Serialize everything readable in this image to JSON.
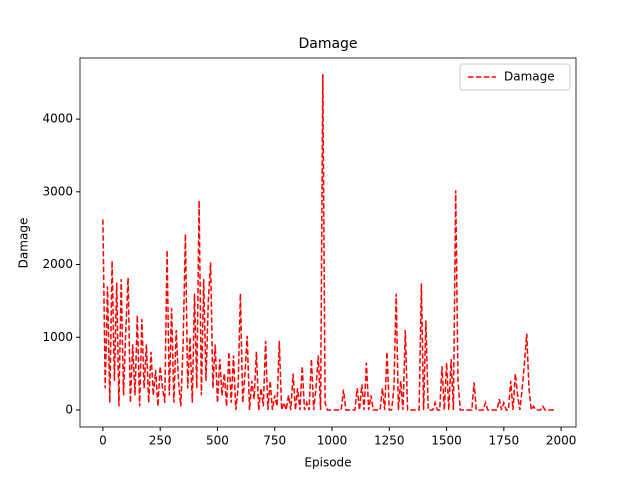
{
  "chart_data": {
    "type": "line",
    "title": "Damage",
    "xlabel": "Episode",
    "ylabel": "Damage",
    "x": [
      0,
      10,
      20,
      30,
      40,
      50,
      60,
      70,
      80,
      90,
      100,
      110,
      120,
      130,
      140,
      150,
      160,
      170,
      180,
      190,
      200,
      210,
      220,
      230,
      240,
      250,
      260,
      270,
      280,
      290,
      300,
      310,
      320,
      330,
      340,
      350,
      360,
      370,
      380,
      390,
      400,
      410,
      420,
      430,
      440,
      450,
      460,
      470,
      480,
      490,
      500,
      510,
      520,
      530,
      540,
      550,
      560,
      570,
      580,
      590,
      600,
      610,
      620,
      630,
      640,
      650,
      660,
      670,
      680,
      690,
      700,
      710,
      720,
      730,
      740,
      750,
      760,
      770,
      780,
      790,
      800,
      810,
      820,
      830,
      840,
      850,
      860,
      870,
      880,
      890,
      900,
      910,
      920,
      930,
      940,
      950,
      960,
      970,
      980,
      990,
      1000,
      1010,
      1020,
      1030,
      1040,
      1050,
      1060,
      1070,
      1080,
      1090,
      1100,
      1110,
      1120,
      1130,
      1140,
      1150,
      1160,
      1170,
      1180,
      1190,
      1200,
      1210,
      1220,
      1230,
      1240,
      1250,
      1260,
      1270,
      1280,
      1290,
      1300,
      1310,
      1320,
      1330,
      1340,
      1350,
      1360,
      1370,
      1380,
      1390,
      1400,
      1410,
      1420,
      1430,
      1440,
      1450,
      1460,
      1470,
      1480,
      1490,
      1500,
      1510,
      1520,
      1530,
      1540,
      1550,
      1560,
      1570,
      1580,
      1590,
      1600,
      1610,
      1620,
      1630,
      1640,
      1650,
      1660,
      1670,
      1680,
      1690,
      1700,
      1710,
      1720,
      1730,
      1740,
      1750,
      1760,
      1770,
      1780,
      1790,
      1800,
      1810,
      1820,
      1830,
      1840,
      1850,
      1860,
      1870,
      1880,
      1890,
      1900,
      1910,
      1920,
      1930,
      1940,
      1950,
      1960,
      1970
    ],
    "series": [
      {
        "name": "Damage",
        "color": "#ff0000",
        "values": [
          2620,
          300,
          1700,
          100,
          2050,
          400,
          1750,
          50,
          1800,
          200,
          1100,
          1820,
          100,
          900,
          200,
          1300,
          50,
          1250,
          300,
          900,
          100,
          800,
          200,
          550,
          50,
          600,
          300,
          100,
          2200,
          200,
          1400,
          100,
          1100,
          400,
          50,
          900,
          2420,
          300,
          1000,
          100,
          1600,
          300,
          2880,
          200,
          1800,
          400,
          1500,
          2030,
          300,
          900,
          100,
          700,
          200,
          500,
          50,
          800,
          100,
          750,
          0,
          300,
          1600,
          100,
          500,
          1020,
          0,
          400,
          150,
          800,
          0,
          300,
          50,
          950,
          0,
          400,
          0,
          200,
          50,
          950,
          0,
          100,
          0,
          200,
          0,
          500,
          0,
          300,
          0,
          600,
          0,
          100,
          0,
          700,
          0,
          300,
          750,
          0,
          4620,
          100,
          0,
          0,
          0,
          0,
          0,
          0,
          0,
          280,
          0,
          0,
          0,
          0,
          0,
          300,
          0,
          350,
          0,
          650,
          0,
          200,
          0,
          0,
          0,
          0,
          300,
          0,
          800,
          0,
          0,
          300,
          1600,
          0,
          400,
          0,
          1100,
          0,
          0,
          0,
          0,
          0,
          0,
          1740,
          0,
          1230,
          0,
          0,
          0,
          100,
          0,
          0,
          600,
          0,
          650,
          0,
          700,
          0,
          3020,
          400,
          0,
          0,
          0,
          0,
          0,
          0,
          380,
          0,
          0,
          0,
          0,
          100,
          0,
          0,
          0,
          0,
          0,
          150,
          0,
          100,
          0,
          0,
          400,
          0,
          500,
          200,
          0,
          300,
          650,
          1050,
          300,
          0,
          50,
          0,
          0,
          0,
          50,
          0,
          0,
          0,
          0,
          0
        ]
      }
    ],
    "xlim": [
      -100,
      2065
    ],
    "ylim": [
      -234,
      4840
    ],
    "xticks": [
      0,
      250,
      500,
      750,
      1000,
      1250,
      1500,
      1750,
      2000
    ],
    "yticks": [
      0,
      1000,
      2000,
      3000,
      4000
    ],
    "legend": "upper right",
    "dashed": true
  }
}
